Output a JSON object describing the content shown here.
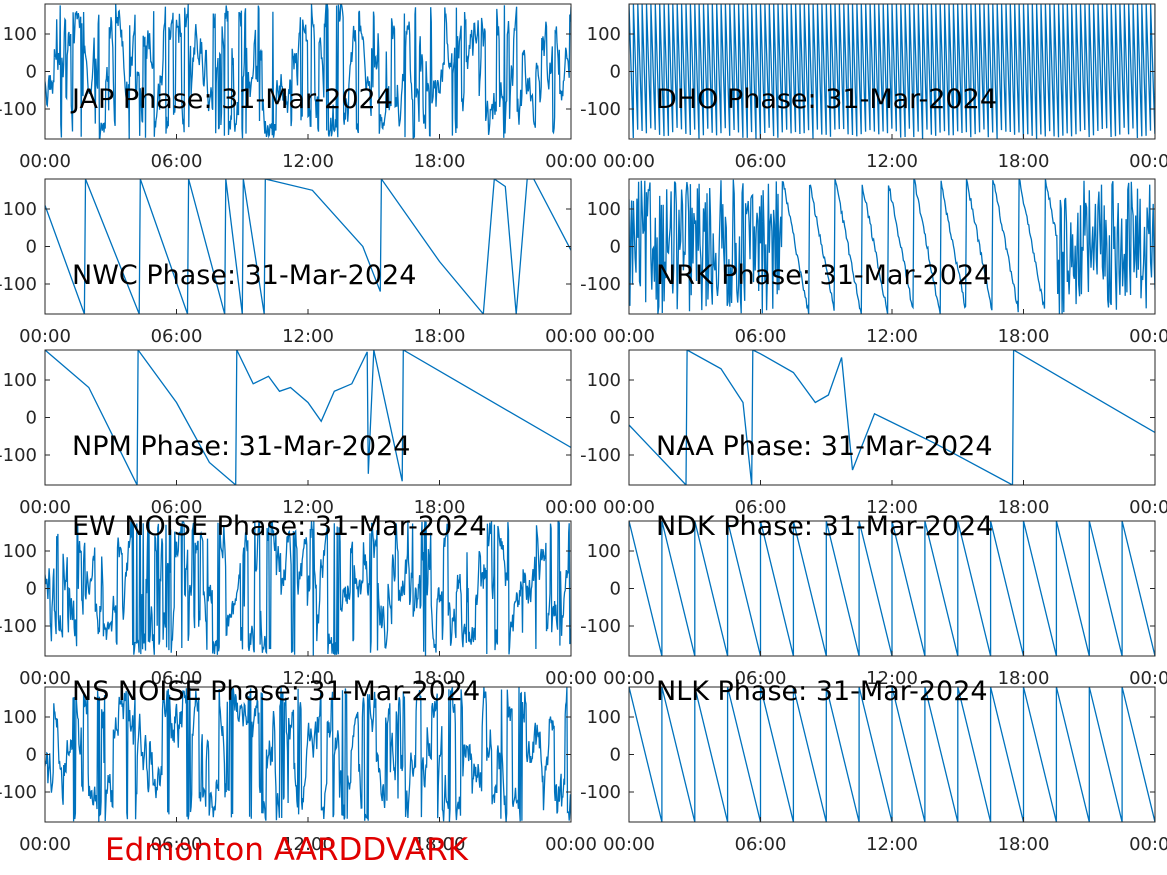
{
  "figure": {
    "footer": "Edmonton AARDDVARK",
    "footer_color": "#e00000",
    "line_color": "#0072BD",
    "axis_color": "#262626"
  },
  "chart_data": [
    {
      "type": "line",
      "title": "JAP Phase: 31-Mar-2024",
      "xlabel": "",
      "ylabel": "",
      "x_ticks": [
        "00:00",
        "06:00",
        "12:00",
        "18:00",
        "00:00"
      ],
      "y_ticks": [
        "100",
        "0",
        "-100"
      ],
      "ylim": [
        -180,
        180
      ],
      "xlim": [
        "00:00",
        "24:00"
      ],
      "pattern": "noise",
      "series": [
        {
          "name": "",
          "x": [],
          "y": []
        }
      ],
      "grid": false,
      "legend": "none"
    },
    {
      "type": "line",
      "title": "DHO Phase: 31-Mar-2024",
      "xlabel": "",
      "ylabel": "",
      "x_ticks": [
        "00:00",
        "06:00",
        "12:00",
        "18:00",
        "00:00"
      ],
      "y_ticks": [
        "100",
        "0",
        "-100"
      ],
      "ylim": [
        -180,
        180
      ],
      "xlim": [
        "00:00",
        "24:00"
      ],
      "pattern": "fastwrap",
      "series": [
        {
          "name": "",
          "x": [],
          "y": []
        }
      ],
      "grid": false,
      "legend": "none"
    },
    {
      "type": "line",
      "title": "NWC Phase: 31-Mar-2024",
      "xlabel": "",
      "ylabel": "",
      "x_ticks": [
        "00:00",
        "06:00",
        "12:00",
        "18:00",
        "00:00"
      ],
      "y_ticks": [
        "100",
        "0",
        "-100"
      ],
      "ylim": [
        -180,
        180
      ],
      "xlim": [
        "00:00",
        "24:00"
      ],
      "pattern": "series",
      "series": [
        {
          "name": "",
          "x": [
            0,
            1.8,
            1.85,
            4.3,
            4.35,
            6.5,
            6.55,
            8.2,
            8.25,
            9.0,
            9.05,
            10.0,
            10.05,
            12.2,
            14.5,
            15.3,
            15.35,
            18.0,
            20.0,
            20.5,
            21.0,
            21.5,
            22.0,
            22.3,
            24.0
          ],
          "y": [
            110,
            -180,
            180,
            -180,
            180,
            -180,
            180,
            -180,
            180,
            -180,
            180,
            -180,
            180,
            150,
            0,
            -120,
            180,
            -40,
            -180,
            180,
            160,
            -180,
            180,
            180,
            -10
          ]
        }
      ],
      "grid": false,
      "legend": "none"
    },
    {
      "type": "line",
      "title": "NRK Phase: 31-Mar-2024",
      "xlabel": "",
      "ylabel": "",
      "x_ticks": [
        "00:00",
        "06:00",
        "12:00",
        "18:00",
        "00:00"
      ],
      "y_ticks": [
        "100",
        "0",
        "-100"
      ],
      "ylim": [
        -180,
        180
      ],
      "xlim": [
        "00:00",
        "24:00"
      ],
      "pattern": "noisy-sawtooth",
      "series": [
        {
          "name": "",
          "x": [],
          "y": []
        }
      ],
      "grid": false,
      "legend": "none"
    },
    {
      "type": "line",
      "title": "NPM Phase: 31-Mar-2024",
      "xlabel": "",
      "ylabel": "",
      "x_ticks": [
        "00:00",
        "06:00",
        "12:00",
        "18:00",
        "00:00"
      ],
      "y_ticks": [
        "100",
        "0",
        "-100"
      ],
      "ylim": [
        -180,
        180
      ],
      "xlim": [
        "00:00",
        "24:00"
      ],
      "pattern": "series",
      "series": [
        {
          "name": "",
          "x": [
            0,
            2.0,
            4.2,
            4.25,
            6.0,
            7.5,
            8.7,
            8.75,
            9.5,
            10.2,
            10.7,
            11.2,
            12.0,
            12.6,
            13.2,
            14.0,
            14.7,
            14.75,
            15.0,
            16.3,
            16.35,
            24.0
          ],
          "y": [
            180,
            80,
            -180,
            180,
            40,
            -120,
            -180,
            180,
            90,
            110,
            70,
            80,
            40,
            -10,
            70,
            90,
            175,
            -150,
            180,
            -170,
            180,
            -80
          ]
        }
      ],
      "grid": false,
      "legend": "none"
    },
    {
      "type": "line",
      "title": "NAA Phase: 31-Mar-2024",
      "xlabel": "",
      "ylabel": "",
      "x_ticks": [
        "00:00",
        "06:00",
        "12:00",
        "18:00",
        "00:00"
      ],
      "y_ticks": [
        "100",
        "0",
        "-100"
      ],
      "ylim": [
        -180,
        180
      ],
      "xlim": [
        "00:00",
        "24:00"
      ],
      "pattern": "series",
      "series": [
        {
          "name": "",
          "x": [
            0,
            2.6,
            2.65,
            4.2,
            5.2,
            5.6,
            5.65,
            6.0,
            7.5,
            8.5,
            9.1,
            9.7,
            10.2,
            11.2,
            14.0,
            17.5,
            17.55,
            24.0
          ],
          "y": [
            -20,
            -180,
            180,
            130,
            40,
            -180,
            180,
            170,
            120,
            40,
            60,
            160,
            -140,
            10,
            -70,
            -180,
            180,
            -40
          ]
        }
      ],
      "grid": false,
      "legend": "none"
    },
    {
      "type": "line",
      "title": "EW NOISE Phase: 31-Mar-2024",
      "xlabel": "",
      "ylabel": "",
      "x_ticks": [
        "00:00",
        "06:00",
        "12:00",
        "18:00",
        "00:00"
      ],
      "y_ticks": [
        "100",
        "0",
        "-100"
      ],
      "ylim": [
        -180,
        180
      ],
      "xlim": [
        "00:00",
        "24:00"
      ],
      "pattern": "noise",
      "series": [
        {
          "name": "",
          "x": [],
          "y": []
        }
      ],
      "grid": false,
      "legend": "none"
    },
    {
      "type": "line",
      "title": "NDK Phase: 31-Mar-2024",
      "xlabel": "",
      "ylabel": "",
      "x_ticks": [
        "00:00",
        "06:00",
        "12:00",
        "18:00",
        "00:00"
      ],
      "y_ticks": [
        "100",
        "0",
        "-100"
      ],
      "ylim": [
        -180,
        180
      ],
      "xlim": [
        "00:00",
        "24:00"
      ],
      "pattern": "sawtooth",
      "series": [
        {
          "name": "",
          "x": [],
          "y": []
        }
      ],
      "grid": false,
      "legend": "none"
    },
    {
      "type": "line",
      "title": "NS NOISE Phase: 31-Mar-2024",
      "xlabel": "",
      "ylabel": "",
      "x_ticks": [
        "00:00",
        "06:00",
        "12:00",
        "18:00",
        "00:00"
      ],
      "y_ticks": [
        "100",
        "0",
        "-100"
      ],
      "ylim": [
        -180,
        180
      ],
      "xlim": [
        "00:00",
        "24:00"
      ],
      "pattern": "noise",
      "series": [
        {
          "name": "",
          "x": [],
          "y": []
        }
      ],
      "grid": false,
      "legend": "none"
    },
    {
      "type": "line",
      "title": "NLK Phase: 31-Mar-2024",
      "xlabel": "",
      "ylabel": "",
      "x_ticks": [
        "00:00",
        "06:00",
        "12:00",
        "18:00",
        "00:00"
      ],
      "y_ticks": [
        "100",
        "0",
        "-100"
      ],
      "ylim": [
        -180,
        180
      ],
      "xlim": [
        "00:00",
        "24:00"
      ],
      "pattern": "sawtooth",
      "series": [
        {
          "name": "",
          "x": [],
          "y": []
        }
      ],
      "grid": false,
      "legend": "none"
    }
  ]
}
